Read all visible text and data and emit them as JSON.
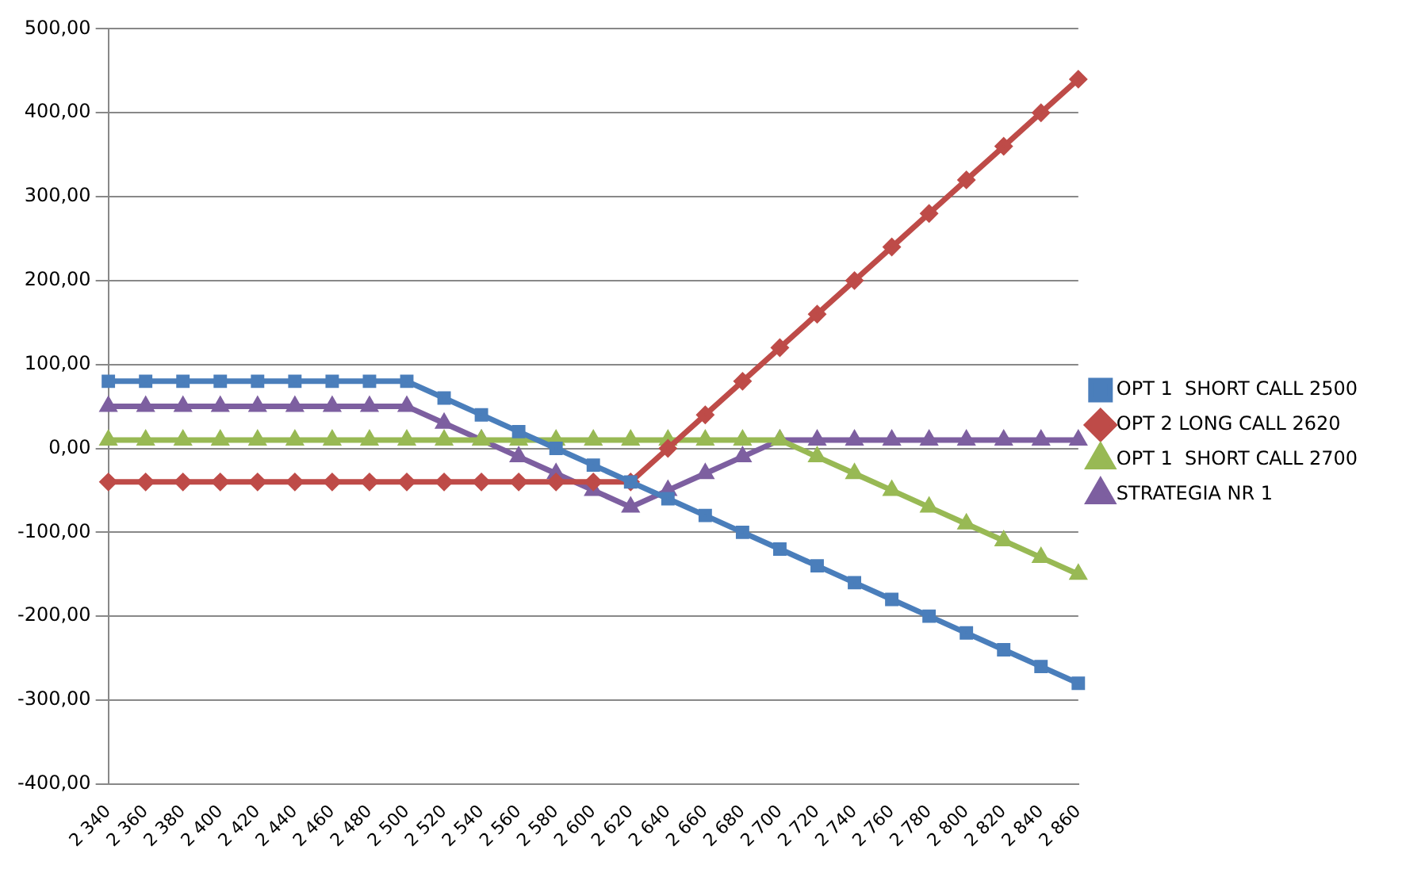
{
  "chart_data": {
    "type": "line",
    "categories": [
      "2 340",
      "2 360",
      "2 380",
      "2 400",
      "2 420",
      "2 440",
      "2 460",
      "2 480",
      "2 500",
      "2 520",
      "2 540",
      "2 560",
      "2 580",
      "2 600",
      "2 620",
      "2 640",
      "2 660",
      "2 680",
      "2 700",
      "2 720",
      "2 740",
      "2 760",
      "2 780",
      "2 800",
      "2 820",
      "2 840",
      "2 860"
    ],
    "series": [
      {
        "name": "OPT 1  SHORT CALL 2500",
        "color": "#4a7ebb",
        "marker": "square",
        "values": [
          80,
          80,
          80,
          80,
          80,
          80,
          80,
          80,
          80,
          60,
          40,
          20,
          0,
          -20,
          -40,
          -60,
          -80,
          -100,
          -120,
          -140,
          -160,
          -180,
          -200,
          -220,
          -240,
          -260,
          -280
        ]
      },
      {
        "name": "OPT 2 LONG CALL 2620",
        "color": "#be4b48",
        "marker": "diamond",
        "values": [
          -40,
          -40,
          -40,
          -40,
          -40,
          -40,
          -40,
          -40,
          -40,
          -40,
          -40,
          -40,
          -40,
          -40,
          -40,
          0,
          40,
          80,
          120,
          160,
          200,
          240,
          280,
          320,
          360,
          400,
          440
        ]
      },
      {
        "name": "OPT 1  SHORT CALL 2700",
        "color": "#98b954",
        "marker": "triangle",
        "values": [
          10,
          10,
          10,
          10,
          10,
          10,
          10,
          10,
          10,
          10,
          10,
          10,
          10,
          10,
          10,
          10,
          10,
          10,
          10,
          -10,
          -30,
          -50,
          -70,
          -90,
          -110,
          -130,
          -150
        ]
      },
      {
        "name": "STRATEGIA NR 1",
        "color": "#7d5fa0",
        "marker": "triangle",
        "values": [
          50,
          50,
          50,
          50,
          50,
          50,
          50,
          50,
          50,
          30,
          10,
          -10,
          -30,
          -50,
          -70,
          -50,
          -30,
          -10,
          10,
          10,
          10,
          10,
          10,
          10,
          10,
          10,
          10
        ]
      }
    ],
    "ylim": [
      -400,
      500
    ],
    "yticks": [
      {
        "value": -400,
        "label": "-400,00"
      },
      {
        "value": -300,
        "label": "-300,00"
      },
      {
        "value": -200,
        "label": "-200,00"
      },
      {
        "value": -100,
        "label": "-100,00"
      },
      {
        "value": 0,
        "label": "0,00"
      },
      {
        "value": 100,
        "label": "100,00"
      },
      {
        "value": 200,
        "label": "200,00"
      },
      {
        "value": 300,
        "label": "300,00"
      },
      {
        "value": 400,
        "label": "400,00"
      },
      {
        "value": 500,
        "label": "500,00"
      }
    ],
    "grid": "y",
    "legend": "right",
    "line_style": "solid"
  }
}
